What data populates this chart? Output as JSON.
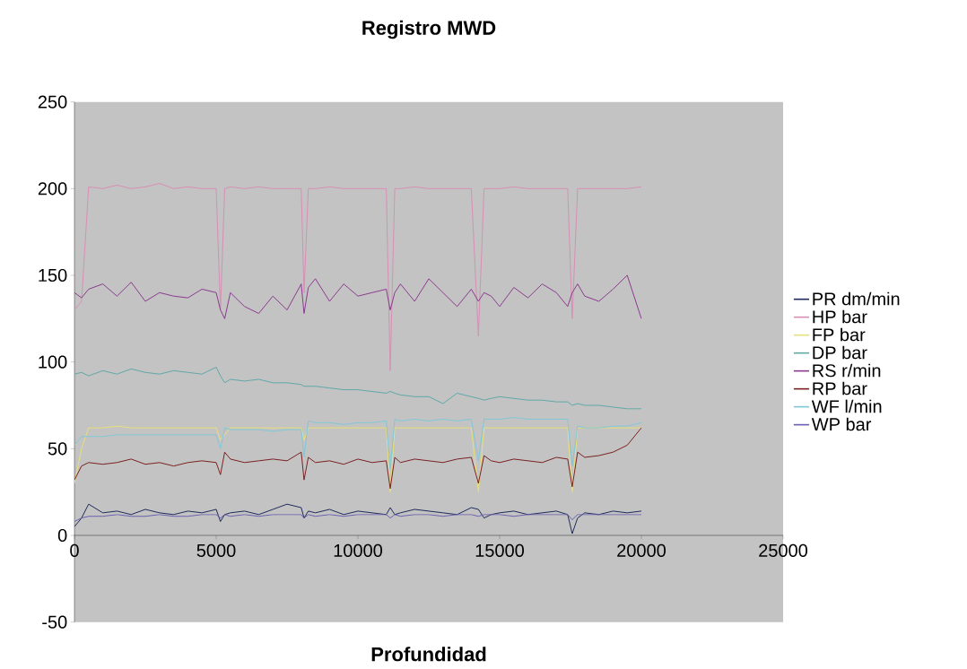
{
  "chart_data": {
    "type": "line",
    "title": "Registro MWD",
    "xlabel": "Profundidad",
    "x": [
      0,
      250,
      500,
      1000,
      1500,
      2000,
      2500,
      3000,
      3500,
      4000,
      4500,
      5000,
      5150,
      5300,
      5500,
      6000,
      6500,
      7000,
      7500,
      8000,
      8100,
      8250,
      8500,
      9000,
      9500,
      10000,
      10500,
      11000,
      11140,
      11300,
      11500,
      12000,
      12500,
      13000,
      13500,
      14000,
      14250,
      14450,
      14700,
      15000,
      15500,
      16000,
      16500,
      17000,
      17400,
      17560,
      17750,
      18000,
      18500,
      19000,
      19500,
      20000
    ],
    "xlim": [
      0,
      25000
    ],
    "xticks": [
      0,
      5000,
      10000,
      15000,
      20000,
      25000
    ],
    "ylim": [
      -50,
      250
    ],
    "yticks": [
      -50,
      0,
      50,
      100,
      150,
      200,
      250
    ],
    "grid": false,
    "legend": "right",
    "marker": "none",
    "line_style": "solid",
    "series": [
      {
        "name": "PR dm/min",
        "color": "#1f2a5a",
        "values": [
          5,
          10,
          18,
          13,
          14,
          12,
          15,
          13,
          12,
          14,
          13,
          15,
          8,
          12,
          13,
          14,
          12,
          15,
          18,
          16,
          10,
          14,
          13,
          15,
          12,
          14,
          13,
          12,
          16,
          12,
          13,
          15,
          14,
          13,
          12,
          16,
          15,
          10,
          12,
          13,
          14,
          12,
          13,
          14,
          12,
          1,
          10,
          13,
          12,
          14,
          13,
          14
        ]
      },
      {
        "name": "HP bar",
        "color": "#d78fb5",
        "values": [
          130,
          135,
          201,
          200,
          202,
          200,
          201,
          203,
          200,
          201,
          200,
          200,
          130,
          200,
          201,
          200,
          201,
          200,
          200,
          200,
          140,
          200,
          200,
          201,
          200,
          200,
          200,
          200,
          95,
          200,
          200,
          201,
          200,
          200,
          200,
          200,
          115,
          200,
          200,
          200,
          201,
          200,
          200,
          200,
          200,
          125,
          200,
          200,
          200,
          200,
          200,
          201
        ]
      },
      {
        "name": "FP bar",
        "color": "#e8e07a",
        "values": [
          30,
          50,
          62,
          62,
          63,
          62,
          62,
          62,
          62,
          62,
          62,
          62,
          55,
          null,
          62,
          62,
          62,
          62,
          62,
          62,
          55,
          62,
          62,
          62,
          62,
          62,
          62,
          62,
          25,
          62,
          62,
          62,
          62,
          62,
          62,
          62,
          25,
          62,
          62,
          62,
          62,
          62,
          62,
          62,
          62,
          25,
          62,
          62,
          62,
          62,
          62,
          62
        ]
      },
      {
        "name": "DP bar",
        "color": "#5fa8a8",
        "values": [
          93,
          94,
          92,
          95,
          93,
          96,
          94,
          93,
          95,
          94,
          93,
          97,
          92,
          88,
          90,
          89,
          90,
          88,
          88,
          87,
          86,
          86,
          86,
          85,
          84,
          84,
          83,
          82,
          83,
          82,
          81,
          80,
          80,
          76,
          82,
          80,
          79,
          78,
          79,
          80,
          79,
          78,
          78,
          77,
          77,
          75,
          76,
          75,
          75,
          74,
          73,
          73
        ]
      },
      {
        "name": "RS r/min",
        "color": "#8b3a8f",
        "values": [
          140,
          137,
          142,
          145,
          138,
          146,
          135,
          140,
          138,
          137,
          142,
          140,
          130,
          125,
          140,
          132,
          128,
          138,
          130,
          145,
          128,
          143,
          148,
          135,
          145,
          138,
          140,
          142,
          130,
          140,
          145,
          135,
          148,
          140,
          132,
          142,
          135,
          140,
          138,
          132,
          143,
          137,
          145,
          140,
          132,
          140,
          145,
          138,
          135,
          142,
          150,
          125
        ]
      },
      {
        "name": "RP bar",
        "color": "#7a2020",
        "values": [
          32,
          40,
          42,
          41,
          42,
          44,
          41,
          42,
          40,
          42,
          43,
          42,
          35,
          48,
          44,
          42,
          43,
          44,
          43,
          48,
          32,
          45,
          42,
          43,
          41,
          44,
          42,
          43,
          27,
          45,
          42,
          44,
          43,
          42,
          44,
          45,
          30,
          46,
          43,
          42,
          44,
          43,
          42,
          45,
          44,
          28,
          48,
          45,
          46,
          48,
          52,
          62
        ]
      },
      {
        "name": "WF l/min",
        "color": "#7fc8d8",
        "values": [
          52,
          57,
          57,
          57,
          58,
          58,
          58,
          58,
          58,
          58,
          58,
          58,
          50,
          62,
          61,
          61,
          61,
          60,
          61,
          61,
          45,
          66,
          65,
          65,
          64,
          65,
          65,
          66,
          38,
          67,
          66,
          67,
          66,
          67,
          66,
          67,
          43,
          67,
          67,
          67,
          68,
          67,
          67,
          67,
          67,
          40,
          63,
          62,
          62,
          63,
          63,
          65
        ]
      },
      {
        "name": "WP bar",
        "color": "#6a5fb0",
        "values": [
          8,
          10,
          11,
          11,
          12,
          11,
          11,
          12,
          11,
          11,
          12,
          12,
          10,
          12,
          11,
          12,
          11,
          12,
          12,
          12,
          10,
          12,
          11,
          12,
          11,
          12,
          12,
          12,
          10,
          12,
          11,
          12,
          12,
          11,
          12,
          12,
          11,
          12,
          12,
          12,
          11,
          12,
          12,
          12,
          12,
          9,
          12,
          12,
          12,
          12,
          12,
          12
        ]
      }
    ]
  }
}
